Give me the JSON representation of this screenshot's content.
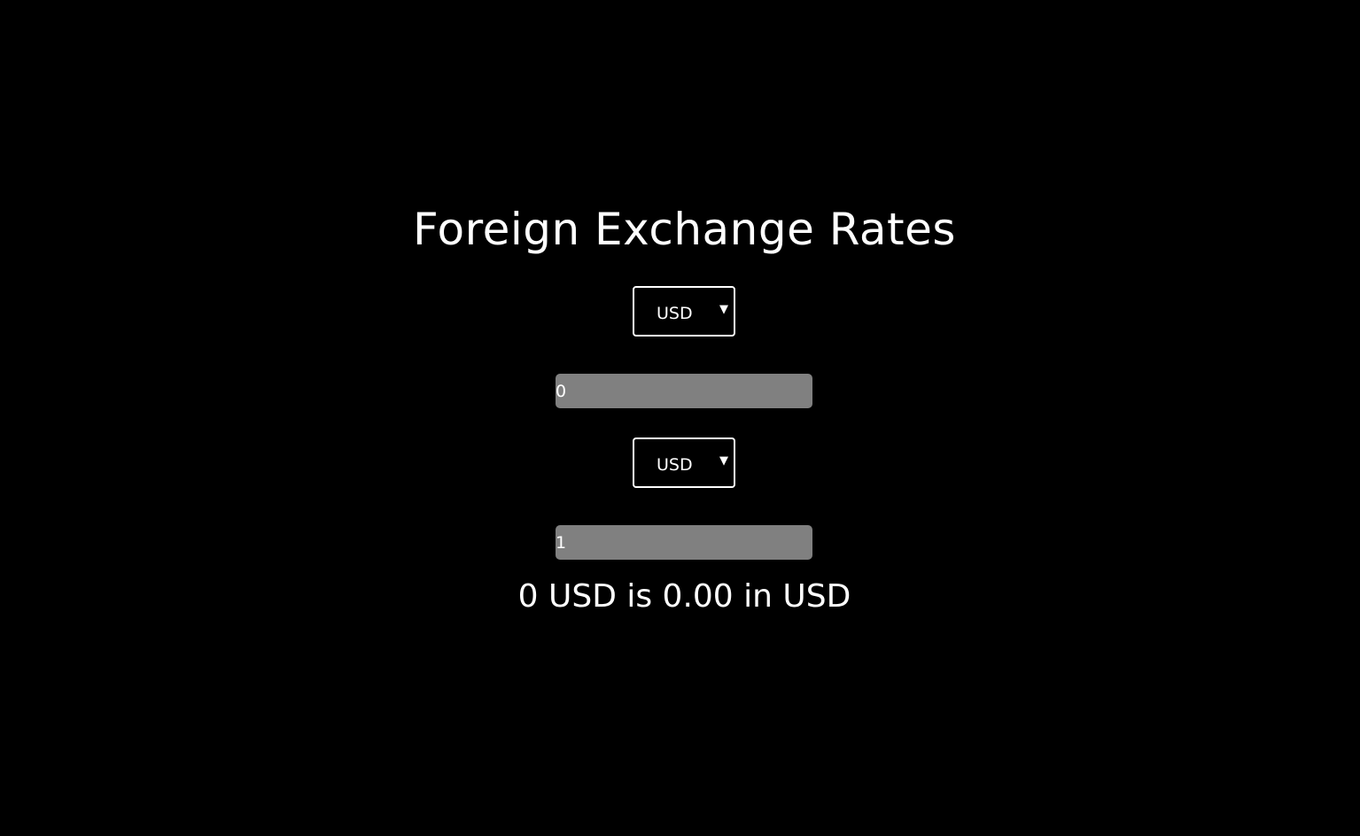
{
  "app": {
    "title": "Foreign Exchange Rates"
  },
  "converter": {
    "from_currency": "USD",
    "from_amount": "0",
    "to_currency": "USD",
    "to_amount": "1",
    "result_text": "0 USD is 0.00 in USD"
  },
  "icons": {
    "dropdown_arrow": "▼"
  },
  "colors": {
    "background": "#000000",
    "text": "#ffffff",
    "input_background": "#808080",
    "select_border": "#ffffff"
  }
}
